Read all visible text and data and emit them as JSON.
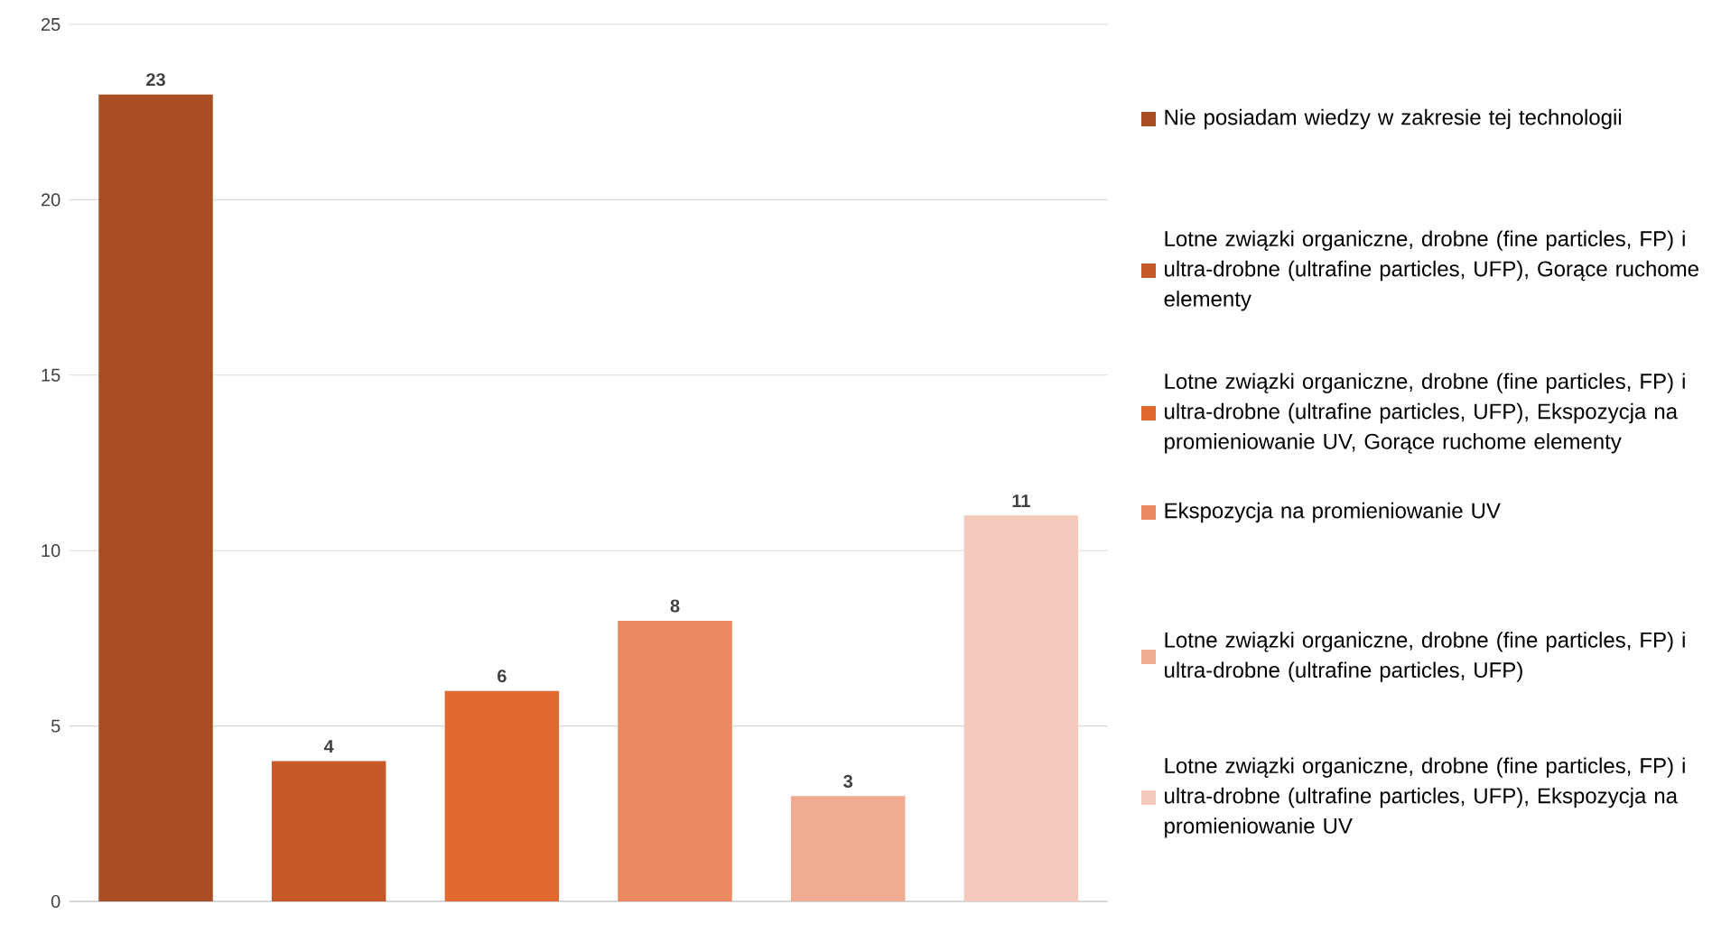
{
  "chart_data": {
    "type": "bar",
    "categories": [
      null,
      null,
      null,
      null,
      null,
      null
    ],
    "series": [
      {
        "name": "Nie posiadam wiedzy w zakresie tej technologii",
        "color": "#a84e22",
        "values": [
          23,
          null,
          null,
          null,
          null,
          null
        ]
      },
      {
        "name": "Lotne związki organiczne, drobne (fine particles, FP) i ultra-drobne (ultrafine particles, UFP), Gorące ruchome elementy",
        "color": "#c55a28",
        "values": [
          null,
          4,
          null,
          null,
          null,
          null
        ]
      },
      {
        "name": "Lotne związki organiczne, drobne (fine particles, FP) i ultra-drobne (ultrafine particles, UFP), Ekspozycja na promieniowanie UV, Gorące ruchome elementy",
        "color": "#e06a2f",
        "values": [
          null,
          null,
          6,
          null,
          null,
          null
        ]
      },
      {
        "name": "Ekspozycja na promieniowanie UV",
        "color": "#eb8a60",
        "values": [
          null,
          null,
          null,
          8,
          null,
          null
        ]
      },
      {
        "name": "Lotne związki organiczne, drobne (fine particles, FP) i ultra-drobne (ultrafine particles, UFP)",
        "color": "#f0ab93",
        "values": [
          null,
          null,
          null,
          null,
          3,
          null
        ]
      },
      {
        "name": "Lotne związki organiczne, drobne (fine particles, FP) i ultra-drobne (ultrafine particles, UFP), Ekspozycja na promieniowanie UV",
        "color": "#f5c9bc",
        "values": [
          null,
          null,
          null,
          null,
          null,
          11
        ]
      }
    ],
    "ylim": [
      0,
      25
    ],
    "yticks": [
      0,
      5,
      10,
      15,
      20,
      25
    ],
    "grid": "y",
    "data_labels": true,
    "legend": "right",
    "tick_labels": "y"
  }
}
